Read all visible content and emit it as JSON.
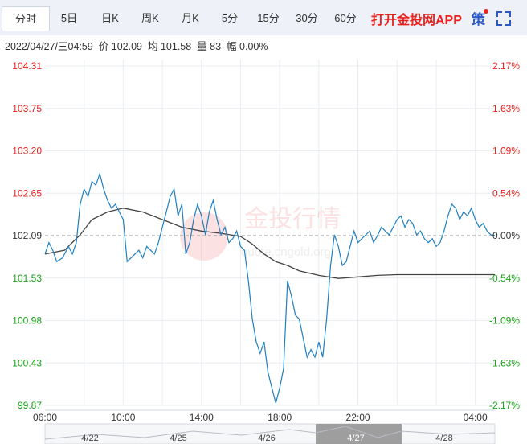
{
  "tabs": [
    {
      "label": "分时",
      "active": true
    },
    {
      "label": "5日"
    },
    {
      "label": "日K"
    },
    {
      "label": "周K"
    },
    {
      "label": "月K"
    },
    {
      "label": "5分"
    },
    {
      "label": "15分"
    },
    {
      "label": "30分"
    },
    {
      "label": "60分"
    }
  ],
  "promo_label": "打开金投网APP",
  "strategy_label": "策",
  "expand_icon": "fullscreen-icon",
  "info": {
    "datetime": "2022/04/27/三04:59",
    "price_label": "价",
    "price": "102.09",
    "avg_label": "均",
    "avg": "101.58",
    "volume_label": "量",
    "volume": "83",
    "change_label": "幅",
    "change": "0.00%"
  },
  "watermark": "金投行情",
  "watermark_url": "quote.cngold.org",
  "colors": {
    "price_line": "#1f7fc0",
    "avg_line": "#444444",
    "up": "#e8231e",
    "down": "#1aa31a",
    "neutral": "#333333"
  },
  "navigator_labels": [
    "4/22",
    "4/25",
    "4/26",
    "4/27",
    "4/28"
  ],
  "chart_data": {
    "type": "line",
    "x_ticks": [
      "06:00",
      "10:00",
      "14:00",
      "18:00",
      "22:00",
      "04:00"
    ],
    "y_ticks": [
      "104.31",
      "103.75",
      "103.20",
      "102.65",
      "102.09",
      "101.53",
      "100.98",
      "100.43",
      "99.87"
    ],
    "pct_ticks": [
      "2.17%",
      "1.63%",
      "1.09%",
      "0.54%",
      "0.00%",
      "-0.54%",
      "-1.09%",
      "-1.63%",
      "-2.17%"
    ],
    "ylim": [
      99.87,
      104.31
    ],
    "base": 102.09,
    "x_hours": [
      0,
      23
    ],
    "series": [
      {
        "role": "price",
        "x": [
          0,
          0.2,
          0.4,
          0.6,
          0.9,
          1.2,
          1.4,
          1.6,
          1.8,
          2.0,
          2.2,
          2.4,
          2.6,
          2.8,
          3.0,
          3.2,
          3.4,
          3.6,
          3.8,
          4.0,
          4.2,
          4.4,
          4.6,
          4.8,
          5.0,
          5.2,
          5.4,
          5.6,
          5.8,
          6.0,
          6.2,
          6.4,
          6.6,
          6.8,
          7.0,
          7.2,
          7.4,
          7.6,
          7.8,
          8.0,
          8.2,
          8.4,
          8.6,
          8.8,
          9.0,
          9.2,
          9.4,
          9.6,
          9.8,
          10.0,
          10.2,
          10.4,
          10.6,
          10.8,
          11.0,
          11.2,
          11.4,
          11.6,
          11.8,
          12.0,
          12.2,
          12.4,
          12.6,
          12.8,
          13.0,
          13.2,
          13.4,
          13.6,
          13.8,
          14.0,
          14.2,
          14.4,
          14.6,
          14.8,
          15.0,
          15.2,
          15.4,
          15.6,
          15.8,
          16.0,
          16.2,
          16.4,
          16.6,
          16.8,
          17.0,
          17.2,
          17.4,
          17.6,
          17.8,
          18.0,
          18.2,
          18.4,
          18.6,
          18.8,
          19.0,
          19.2,
          19.4,
          19.6,
          19.8,
          20.0,
          20.2,
          20.4,
          20.6,
          20.8,
          21.0,
          21.2,
          21.4,
          21.6,
          21.8,
          22.0,
          22.2,
          22.4,
          22.6,
          22.8,
          23.0
        ],
        "values": [
          101.85,
          102.0,
          101.9,
          101.75,
          101.8,
          101.95,
          101.85,
          102.0,
          102.5,
          102.7,
          102.6,
          102.8,
          102.75,
          102.9,
          102.7,
          102.55,
          102.45,
          102.5,
          102.4,
          102.3,
          101.75,
          101.8,
          101.85,
          101.9,
          101.8,
          101.95,
          101.9,
          101.85,
          102.0,
          102.2,
          102.4,
          102.6,
          102.7,
          102.35,
          102.5,
          101.85,
          102.0,
          102.3,
          102.5,
          102.35,
          102.1,
          102.4,
          102.55,
          102.3,
          102.1,
          102.2,
          102.0,
          102.05,
          102.15,
          101.95,
          101.9,
          101.5,
          101.0,
          100.7,
          100.55,
          100.7,
          100.3,
          100.1,
          99.9,
          100.1,
          100.35,
          101.5,
          101.3,
          101.05,
          101.0,
          100.75,
          100.5,
          100.6,
          100.5,
          100.7,
          100.5,
          101.0,
          101.7,
          102.1,
          101.95,
          101.7,
          101.75,
          101.95,
          102.15,
          102.0,
          102.05,
          102.1,
          102.15,
          102.0,
          102.09,
          102.2,
          102.15,
          102.1,
          102.2,
          102.3,
          102.35,
          102.2,
          102.3,
          102.25,
          102.1,
          102.15,
          102.05,
          102.0,
          102.05,
          101.95,
          102.0,
          102.15,
          102.35,
          102.5,
          102.45,
          102.3,
          102.4,
          102.35,
          102.45,
          102.3,
          102.2,
          102.25,
          102.15,
          102.1,
          102.09
        ]
      },
      {
        "role": "average",
        "x": [
          0,
          1.0,
          1.8,
          2.4,
          3.2,
          4.0,
          5.0,
          6.0,
          7.0,
          8.0,
          9.0,
          10.0,
          10.6,
          11.2,
          11.8,
          12.4,
          13.0,
          14.0,
          15.0,
          16.0,
          17.0,
          18.0,
          19.0,
          20.0,
          21.0,
          22.0,
          23.0
        ],
        "values": [
          101.85,
          101.9,
          102.1,
          102.3,
          102.4,
          102.45,
          102.4,
          102.3,
          102.2,
          102.15,
          102.12,
          102.08,
          101.98,
          101.85,
          101.75,
          101.7,
          101.63,
          101.57,
          101.53,
          101.55,
          101.57,
          101.58,
          101.58,
          101.58,
          101.58,
          101.58,
          101.58
        ]
      }
    ],
    "grid": true
  }
}
